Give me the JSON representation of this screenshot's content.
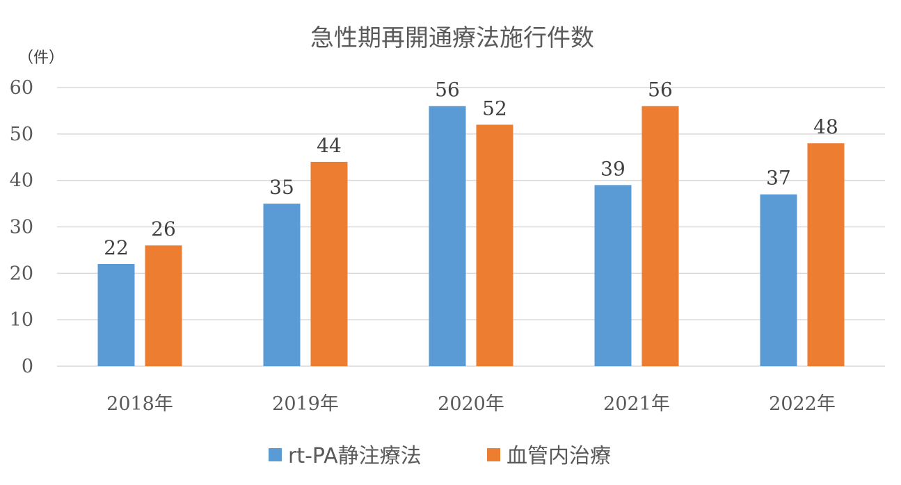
{
  "chart_data": {
    "type": "bar",
    "title": "急性期再開通療法施行件数",
    "unit_label": "（件）",
    "categories": [
      "2018年",
      "2019年",
      "2020年",
      "2021年",
      "2022年"
    ],
    "series": [
      {
        "name": "rt-PA静注療法",
        "values": [
          22,
          35,
          56,
          39,
          37
        ],
        "color": "#5b9bd5"
      },
      {
        "name": "血管内治療",
        "values": [
          26,
          44,
          52,
          56,
          48
        ],
        "color": "#ed7d31"
      }
    ],
    "ylim": [
      0,
      60
    ],
    "yticks": [
      0,
      10,
      20,
      30,
      40,
      50,
      60
    ],
    "grid": true,
    "data_labels": true,
    "legend_position": "bottom"
  }
}
